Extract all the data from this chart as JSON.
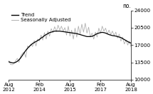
{
  "title": "",
  "ylabel": "no.",
  "ylim": [
    10000,
    24000
  ],
  "yticks": [
    10000,
    13500,
    17000,
    20500,
    24000
  ],
  "xtick_labels": [
    "Aug\n2012",
    "Feb\n2014",
    "Aug\n2015",
    "Feb\n2017",
    "Aug\n2018"
  ],
  "xtick_positions": [
    0,
    18,
    36,
    54,
    72
  ],
  "legend_entries": [
    "Trend",
    "Seasonally Adjusted"
  ],
  "trend_color": "#000000",
  "seasonal_color": "#b0b0b0",
  "background_color": "#ffffff",
  "trend": [
    13600,
    13500,
    13400,
    13400,
    13500,
    13700,
    14000,
    14400,
    14900,
    15400,
    15900,
    16300,
    16700,
    17000,
    17300,
    17500,
    17700,
    17900,
    18100,
    18400,
    18600,
    18900,
    19100,
    19300,
    19500,
    19600,
    19700,
    19800,
    19800,
    19800,
    19800,
    19750,
    19700,
    19650,
    19600,
    19550,
    19500,
    19450,
    19400,
    19350,
    19300,
    19200,
    19100,
    19000,
    18900,
    18800,
    18700,
    18700,
    18700,
    18750,
    18900,
    19100,
    19300,
    19400,
    19500,
    19550,
    19500,
    19400,
    19250,
    19100,
    19000,
    18900,
    18850,
    18800,
    18700,
    18600,
    18500,
    18300,
    18100,
    17900,
    17700,
    17500,
    17400
  ],
  "seasonal": [
    13800,
    13100,
    13000,
    13200,
    13800,
    14300,
    13500,
    14800,
    15300,
    15600,
    14500,
    16800,
    16500,
    17200,
    16700,
    17900,
    16800,
    18200,
    17800,
    19000,
    18000,
    19500,
    18200,
    19800,
    18800,
    20300,
    19500,
    20700,
    19700,
    21000,
    20000,
    20800,
    19800,
    20500,
    19000,
    20800,
    18800,
    20000,
    18200,
    20400,
    18600,
    20800,
    19200,
    21200,
    19600,
    21400,
    19400,
    20600,
    18600,
    19400,
    18200,
    19600,
    18600,
    20400,
    19400,
    20800,
    19800,
    20400,
    19200,
    20000,
    19100,
    19800,
    18900,
    19600,
    18400,
    19200,
    17800,
    18600,
    17200,
    18000,
    17000,
    17800,
    16600
  ],
  "n_points": 73,
  "figsize": [
    2.15,
    1.32
  ],
  "dpi": 100
}
